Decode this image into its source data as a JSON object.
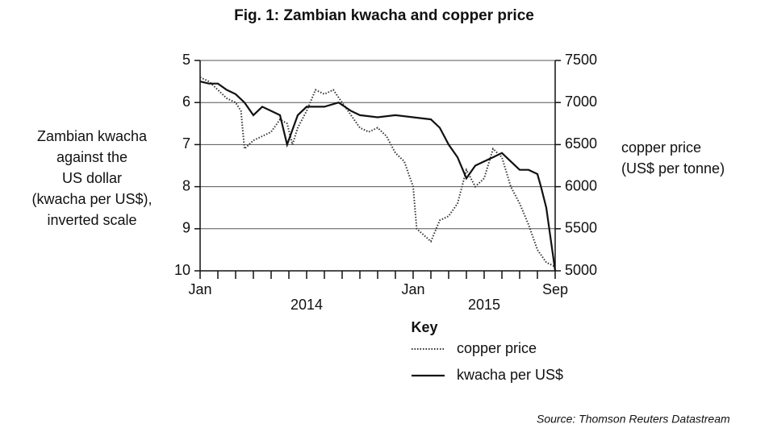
{
  "chart_data": {
    "type": "line",
    "title": "Fig. 1: Zambian kwacha and copper price",
    "ylabel": [
      "Zambian kwacha",
      "against the",
      "US dollar",
      "(kwacha per US$),",
      "inverted scale"
    ],
    "y2label": [
      "copper price",
      "(US$ per tonne)"
    ],
    "xlim": [
      0,
      20
    ],
    "xticks": [
      {
        "value": 0,
        "label": "Jan"
      },
      {
        "value": 12,
        "label": "Jan"
      },
      {
        "value": 20,
        "label": "Sep"
      }
    ],
    "xminor_ticks": [
      1,
      2,
      3,
      4,
      5,
      6,
      7,
      8,
      9,
      10,
      11,
      13,
      14,
      15,
      16,
      17,
      18,
      19
    ],
    "year_labels": [
      {
        "value": 6,
        "label": "2014"
      },
      {
        "value": 16,
        "label": "2015"
      }
    ],
    "ylim": [
      5,
      10
    ],
    "y_inverted": true,
    "yticks": [
      5,
      6,
      7,
      8,
      9,
      10
    ],
    "y2lim": [
      5000,
      7500
    ],
    "y2ticks": [
      5000,
      5500,
      6000,
      6500,
      7000,
      7500
    ],
    "grid": true,
    "legend_title": "Key",
    "series": [
      {
        "name": "copper price",
        "color": "#333333",
        "dash": "dotted",
        "axis": "y2",
        "x": [
          0,
          0.5,
          1,
          1.5,
          2,
          2.3,
          2.5,
          3,
          3.5,
          4,
          4.5,
          4.9,
          5.2,
          5.5,
          6,
          6.5,
          7,
          7.5,
          8,
          8.5,
          9,
          9.5,
          10,
          10.5,
          11,
          11.5,
          12,
          12.2,
          13,
          13.5,
          14,
          14.5,
          15,
          15.5,
          16,
          16.5,
          17,
          17.5,
          18,
          18.5,
          19,
          19.5,
          20
        ],
        "values": [
          7300,
          7250,
          7150,
          7050,
          7000,
          6900,
          6450,
          6550,
          6600,
          6650,
          6800,
          6750,
          6500,
          6700,
          6900,
          7150,
          7100,
          7150,
          7000,
          6850,
          6700,
          6650,
          6700,
          6600,
          6400,
          6300,
          6000,
          5500,
          5350,
          5600,
          5650,
          5800,
          6200,
          6000,
          6100,
          6450,
          6350,
          6000,
          5800,
          5550,
          5250,
          5100,
          5050
        ]
      },
      {
        "name": "kwacha per US$",
        "color": "#111111",
        "dash": "solid",
        "axis": "y",
        "x": [
          0,
          0.5,
          1,
          1.5,
          2,
          2.5,
          3,
          3.5,
          4,
          4.5,
          4.9,
          5.5,
          6,
          7,
          7.8,
          8.5,
          9,
          10,
          11,
          12,
          13,
          13.5,
          14,
          14.5,
          15,
          15.5,
          16,
          16.5,
          17,
          17.5,
          18,
          18.5,
          19,
          19.2,
          19.5,
          20
        ],
        "values": [
          5.5,
          5.55,
          5.55,
          5.7,
          5.8,
          6.0,
          6.3,
          6.1,
          6.2,
          6.3,
          7.0,
          6.3,
          6.1,
          6.1,
          6.0,
          6.2,
          6.3,
          6.35,
          6.3,
          6.35,
          6.4,
          6.6,
          7.0,
          7.3,
          7.8,
          7.5,
          7.4,
          7.3,
          7.2,
          7.4,
          7.6,
          7.6,
          7.7,
          8.0,
          8.5,
          10
        ]
      }
    ],
    "source": "Source: Thomson Reuters Datastream"
  }
}
